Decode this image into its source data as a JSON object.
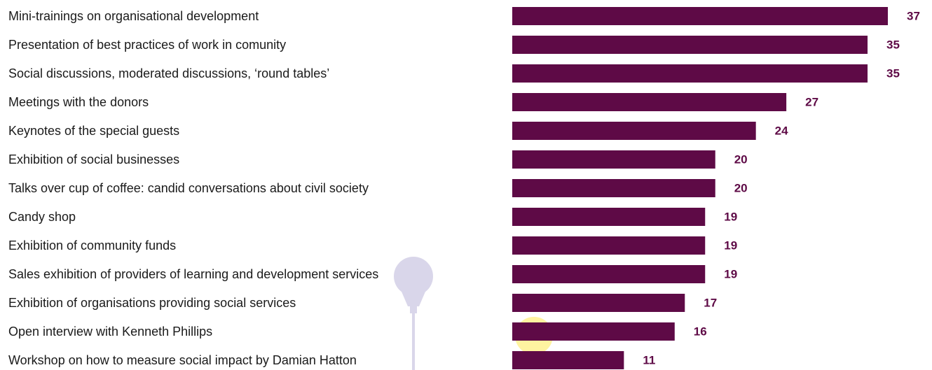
{
  "chart_data": {
    "type": "bar",
    "orientation": "horizontal",
    "categories": [
      "Mini-trainings on organisational development",
      "Presentation of best practices of work in comunity",
      "Social discussions, moderated discussions, ‘round tables’",
      "Meetings with the donors",
      "Keynotes of the special guests",
      "Exhibition of social businesses",
      "Talks over cup of coffee: candid conversations about civil society",
      "Candy shop",
      "Exhibition of community funds",
      "Sales exhibition of providers of learning and development services",
      "Exhibition of organisations providing social services",
      "Open interview with Kenneth Phillips",
      "Workshop on how to measure social impact by Damian Hatton"
    ],
    "values": [
      37,
      35,
      35,
      27,
      24,
      20,
      20,
      19,
      19,
      19,
      17,
      16,
      11
    ],
    "value_labels": [
      "37",
      "35",
      "35",
      "27",
      "24",
      "20",
      "20",
      "19",
      "19",
      "19",
      "17",
      "16",
      "11"
    ],
    "xlim": [
      0,
      37
    ],
    "grid": false,
    "legend": "none"
  },
  "colors": {
    "bar": "#5e0a46",
    "value_label": "#5e0a46",
    "label_text": "#1a1a1a",
    "bulb_decoration": "#d9d6ea",
    "bulb_glow": "#fff3a0"
  },
  "decoration": {
    "icon": "lightbulb-icon"
  }
}
